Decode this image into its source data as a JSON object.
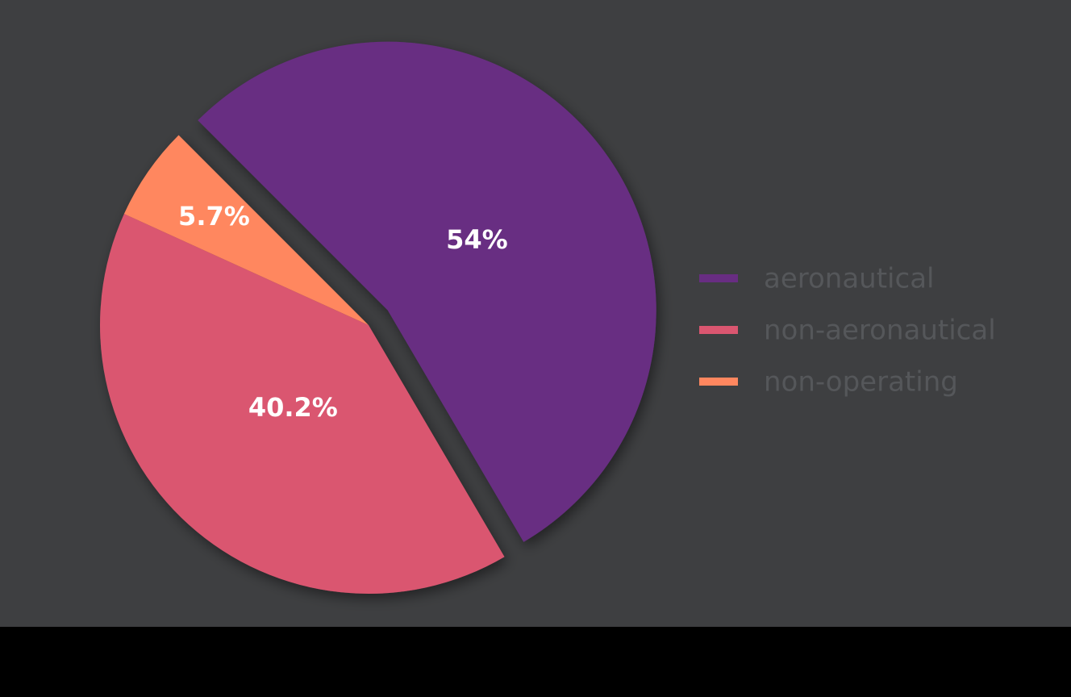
{
  "chart_data": {
    "type": "pie",
    "categories": [
      "aeronautical",
      "non-aeronautical",
      "non-operating"
    ],
    "values": [
      54,
      40.2,
      5.7
    ],
    "value_labels": [
      "54%",
      "40.2%",
      "5.7%"
    ],
    "colors": [
      "#682d82",
      "#da5670",
      "#ff875f"
    ],
    "explode": [
      true,
      false,
      false
    ],
    "legend": "right"
  }
}
